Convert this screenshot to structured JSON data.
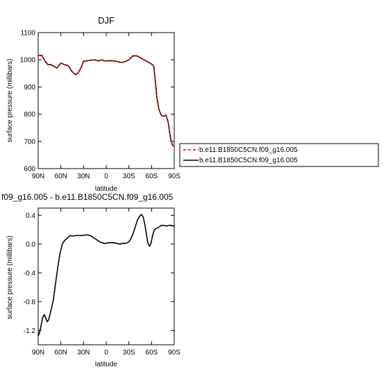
{
  "chart_data": [
    {
      "type": "line",
      "title": "DJF",
      "xlabel": "latitude",
      "ylabel": "surface pressure (millibars)",
      "x_ticks": [
        "90N",
        "60N",
        "30N",
        "0",
        "30S",
        "60S",
        "90S"
      ],
      "y_ticks": [
        "600",
        "700",
        "800",
        "900",
        "1000",
        "1100"
      ],
      "xlim": [
        -90,
        90
      ],
      "ylim": [
        600,
        1100
      ],
      "legend_position": "right",
      "series": [
        {
          "name": "b.e11.B1850C5CN.f09_g16.005",
          "color": "#cc0000",
          "dash": "dashed",
          "x": [
            -90,
            -85,
            -81,
            -77,
            -73,
            -69,
            -65,
            -60,
            -55,
            -50,
            -46,
            -43,
            -40,
            -37,
            -35,
            -32,
            -30,
            -26,
            -22,
            -16,
            -10,
            -6,
            -2,
            0,
            5,
            10,
            15,
            20,
            25,
            30,
            35,
            40,
            45,
            50,
            55,
            60,
            63,
            65,
            67,
            70,
            73,
            76,
            79,
            82,
            84,
            86,
            88,
            90
          ],
          "y": [
            1016,
            1016,
            995,
            982,
            983,
            975,
            970,
            988,
            982,
            978,
            960,
            950,
            945,
            952,
            962,
            980,
            995,
            996,
            998,
            1000,
            996,
            1000,
            996,
            996,
            997,
            996,
            993,
            990,
            993,
            1000,
            1014,
            1015,
            1008,
            1000,
            992,
            985,
            975,
            920,
            860,
            815,
            795,
            792,
            797,
            770,
            730,
            700,
            685,
            683
          ]
        },
        {
          "name": "b.e11.B1850C5CN.f09_g16.005",
          "color": "#000000",
          "dash": "solid",
          "x": [
            -90,
            -85,
            -81,
            -77,
            -73,
            -69,
            -65,
            -60,
            -55,
            -50,
            -46,
            -43,
            -40,
            -37,
            -35,
            -32,
            -30,
            -26,
            -22,
            -16,
            -10,
            -6,
            -2,
            0,
            5,
            10,
            15,
            20,
            25,
            30,
            35,
            40,
            45,
            50,
            55,
            60,
            63,
            65,
            67,
            70,
            73,
            76,
            79,
            82,
            84,
            86,
            88,
            90
          ],
          "y": [
            1016,
            1016,
            995,
            982,
            983,
            975,
            970,
            988,
            982,
            978,
            960,
            950,
            945,
            952,
            962,
            980,
            995,
            996,
            998,
            1000,
            996,
            1000,
            996,
            996,
            997,
            996,
            993,
            990,
            993,
            1000,
            1014,
            1015,
            1008,
            1000,
            992,
            985,
            975,
            920,
            860,
            815,
            795,
            792,
            797,
            770,
            730,
            700,
            685,
            683
          ]
        }
      ]
    },
    {
      "type": "line",
      "title": "f09_g16.005 - b.e11.B1850C5CN.f09_g16.005",
      "xlabel": "latitude",
      "ylabel": "surface pressure (millibars)",
      "x_ticks": [
        "90N",
        "60N",
        "30N",
        "0",
        "30S",
        "60S",
        "90S"
      ],
      "y_ticks": [
        "-1.2",
        "-0.8",
        "-0.4",
        "0.0",
        "0.4"
      ],
      "xlim": [
        -90,
        90
      ],
      "ylim": [
        -1.4,
        0.5
      ],
      "series": [
        {
          "color": "#000000",
          "dash": "solid",
          "x": [
            -90,
            -88,
            -86,
            -84,
            -82,
            -80,
            -78,
            -76,
            -73,
            -70,
            -67,
            -64,
            -61,
            -58,
            -55,
            -52,
            -50,
            -47,
            -44,
            -40,
            -37,
            -33,
            -30,
            -26,
            -22,
            -18,
            -14,
            -10,
            -6,
            -2,
            0,
            3,
            6,
            10,
            14,
            18,
            22,
            26,
            30,
            33,
            36,
            39,
            42,
            45,
            47,
            49,
            51,
            53,
            55,
            57,
            59,
            61,
            63,
            65,
            67,
            70,
            73,
            76,
            80,
            83,
            86,
            88,
            90
          ],
          "y": [
            -1.28,
            -1.22,
            -1.12,
            -1.02,
            -0.98,
            -1.03,
            -1.08,
            -1.05,
            -0.92,
            -0.78,
            -0.55,
            -0.32,
            -0.12,
            0.0,
            0.05,
            0.08,
            0.1,
            0.12,
            0.11,
            0.12,
            0.12,
            0.12,
            0.12,
            0.13,
            0.12,
            0.1,
            0.07,
            0.04,
            0.02,
            0.01,
            0.01,
            0.02,
            0.02,
            0.02,
            0.01,
            0.0,
            0.01,
            0.01,
            0.03,
            0.08,
            0.16,
            0.26,
            0.35,
            0.4,
            0.41,
            0.37,
            0.28,
            0.15,
            0.02,
            -0.03,
            0.0,
            0.1,
            0.18,
            0.21,
            0.22,
            0.24,
            0.26,
            0.26,
            0.25,
            0.26,
            0.26,
            0.25,
            0.26
          ]
        }
      ]
    }
  ]
}
